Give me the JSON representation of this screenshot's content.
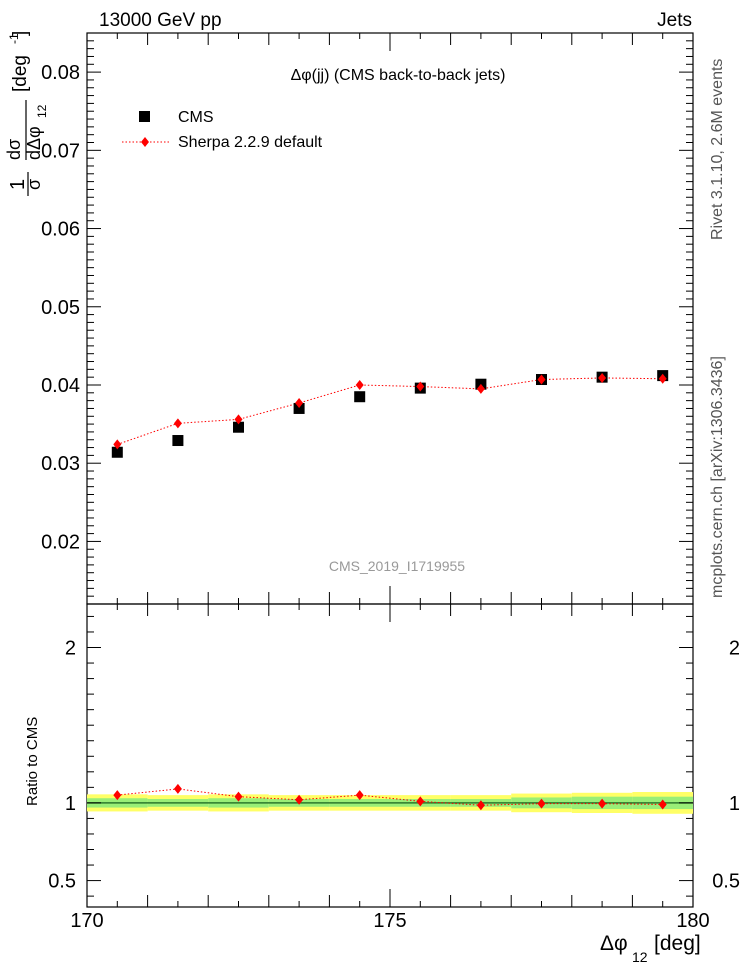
{
  "header": {
    "left": "13000 GeV pp",
    "right": "Jets"
  },
  "side_labels": {
    "rivet": "Rivet 3.1.10, 2.6M events",
    "mcplots": "mcplots.cern.ch [arXiv:1306.3436]"
  },
  "chart_data": [
    {
      "type": "scatter",
      "title": "Δφ(jj) (CMS back-to-back jets)",
      "watermark": "CMS_2019_I1719955",
      "ylabel": "1/σ dσ/dΔφ12 [deg⁻¹]",
      "xlim": [
        170,
        180
      ],
      "ylim": [
        0.012,
        0.085
      ],
      "y_ticks": [
        "0.02",
        "0.03",
        "0.04",
        "0.05",
        "0.06",
        "0.07",
        "0.08"
      ],
      "legend_position": "top-left",
      "series": [
        {
          "name": "CMS",
          "marker": "square",
          "color": "#000000",
          "x": [
            170.5,
            171.5,
            172.5,
            173.5,
            174.5,
            175.5,
            176.5,
            177.5,
            178.5,
            179.5
          ],
          "y": [
            0.0314,
            0.0329,
            0.0346,
            0.037,
            0.0385,
            0.0396,
            0.0401,
            0.0407,
            0.041,
            0.0412
          ]
        },
        {
          "name": "Sherpa 2.2.9 default",
          "marker": "diamond",
          "color": "#ff0000",
          "line": "dotted",
          "x": [
            170.5,
            171.5,
            172.5,
            173.5,
            174.5,
            175.5,
            176.5,
            177.5,
            178.5,
            179.5
          ],
          "y": [
            0.0324,
            0.0351,
            0.0356,
            0.0377,
            0.04,
            0.0398,
            0.0395,
            0.0407,
            0.0409,
            0.0408
          ]
        }
      ]
    },
    {
      "type": "scatter",
      "ylabel": "Ratio to CMS",
      "xlabel": "Δφ12 [deg]",
      "xlim": [
        170,
        180
      ],
      "ylim": [
        0.33,
        2.28
      ],
      "y_ticks": [
        "0.5",
        "1",
        "2"
      ],
      "x_ticks": [
        "170",
        "175",
        "180"
      ],
      "band": {
        "color_outer": "#ffff66",
        "color_inner": "#99ee77",
        "x": [
          170,
          171,
          172,
          173,
          174,
          175,
          176,
          177,
          178,
          179,
          180
        ],
        "outer": [
          0.055,
          0.05,
          0.055,
          0.05,
          0.05,
          0.05,
          0.05,
          0.06,
          0.065,
          0.07
        ],
        "inner": [
          0.03,
          0.025,
          0.03,
          0.025,
          0.025,
          0.025,
          0.025,
          0.035,
          0.04,
          0.04
        ]
      },
      "series": [
        {
          "name": "Sherpa 2.2.9 default",
          "color": "#ff0000",
          "x": [
            170.5,
            171.5,
            172.5,
            173.5,
            174.5,
            175.5,
            176.5,
            177.5,
            178.5,
            179.5
          ],
          "y": [
            1.05,
            1.09,
            1.04,
            1.02,
            1.05,
            1.01,
            0.985,
            0.995,
            0.995,
            0.99
          ]
        }
      ]
    }
  ]
}
